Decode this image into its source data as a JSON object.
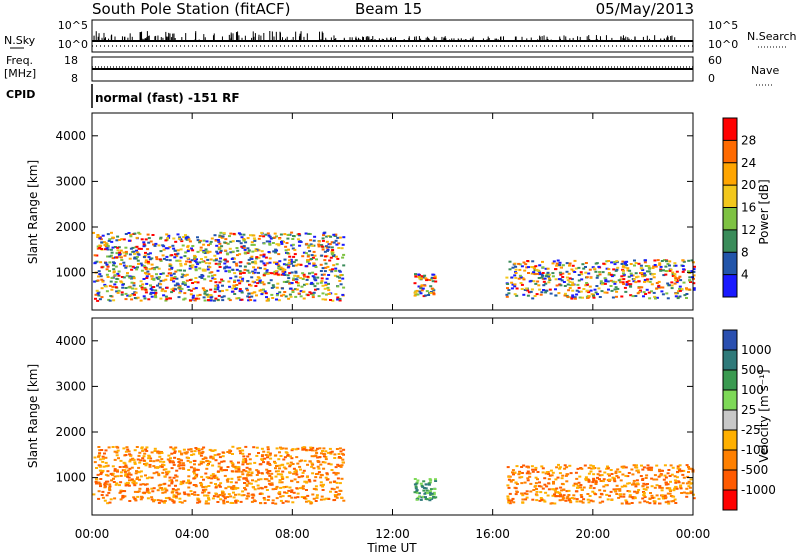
{
  "header": {
    "station": "South Pole Station (fitACF)",
    "beam": "Beam 15",
    "date": "05/May/2013"
  },
  "top_panels": {
    "nsky_label": "N.Sky",
    "nsky_ticks": [
      "10^5",
      "10^0"
    ],
    "nsearch_label": "N.Search",
    "nsearch_ticks": [
      "10^5",
      "10^0"
    ],
    "freq_label_1": "Freq.",
    "freq_label_2": "[MHz]",
    "freq_ticks": [
      "18",
      "8"
    ],
    "nave_label": "Nave",
    "nave_ticks": [
      "60",
      "0"
    ],
    "cpid_label": "CPID",
    "cpid_text": "normal (fast) -151 RF"
  },
  "chart_data": [
    {
      "type": "heatmap",
      "panel": "power",
      "xlabel": "",
      "ylabel": "Slant Range [km]",
      "yticks": [
        "1000",
        "2000",
        "3000",
        "4000"
      ],
      "ylim": [
        180,
        4500
      ],
      "xlim": [
        "00:00",
        "24:00"
      ],
      "colorbar_label": "Power [dB]",
      "colorbar_ticks": [
        "28",
        "24",
        "20",
        "16",
        "12",
        "8",
        "4"
      ],
      "colorbar_colors": [
        "#ff0000",
        "#ff6a00",
        "#ffa500",
        "#f2c71c",
        "#7ec242",
        "#3a8c5a",
        "#2255aa",
        "#1a1aff"
      ],
      "regions": [
        {
          "start": "00:00",
          "end": "10:00",
          "range_min": 400,
          "range_max": 1900,
          "level_db": 22
        },
        {
          "start": "12:50",
          "end": "13:40",
          "range_min": 500,
          "range_max": 1000,
          "level_db": 20
        },
        {
          "start": "16:30",
          "end": "24:00",
          "range_min": 450,
          "range_max": 1300,
          "level_db": 18
        }
      ]
    },
    {
      "type": "heatmap",
      "panel": "velocity",
      "xlabel": "Time UT",
      "ylabel": "Slant Range [km]",
      "yticks": [
        "1000",
        "2000",
        "3000",
        "4000"
      ],
      "ylim": [
        180,
        4500
      ],
      "xticks": [
        "00:00",
        "04:00",
        "08:00",
        "12:00",
        "16:00",
        "20:00",
        "00:00"
      ],
      "colorbar_label": "Velocity [m s⁻¹]",
      "colorbar_ticks": [
        "1000",
        "500",
        "100",
        "25",
        "-25",
        "-100",
        "-500",
        "-1000"
      ],
      "colorbar_colors": [
        "#2a4fb0",
        "#2f7a7a",
        "#3a9a50",
        "#7ed957",
        "#c8c8c8",
        "#ffb000",
        "#ff8000",
        "#ff5a00",
        "#ff0000"
      ],
      "regions": [
        {
          "start": "00:00",
          "end": "10:00",
          "range_min": 450,
          "range_max": 1700,
          "velocity": -300
        },
        {
          "start": "12:50",
          "end": "13:40",
          "range_min": 500,
          "range_max": 1000,
          "velocity": 150
        },
        {
          "start": "16:30",
          "end": "24:00",
          "range_min": 450,
          "range_max": 1300,
          "velocity": -250
        }
      ]
    }
  ]
}
